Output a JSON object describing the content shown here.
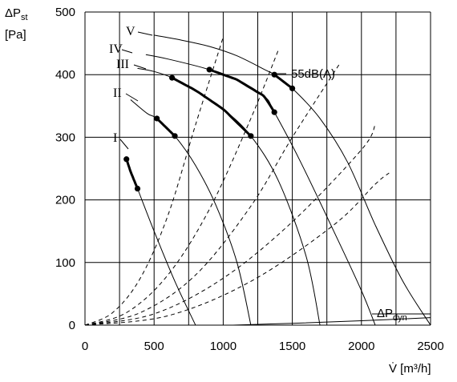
{
  "chart_data": {
    "type": "line",
    "ylabel": "ΔPst",
    "ylabel_main": "ΔP",
    "ylabel_sub": "st",
    "yunit": "[Pa]",
    "xlabel": "V̇ [m³/h]",
    "xlim": [
      0,
      2500
    ],
    "ylim": [
      0,
      500
    ],
    "x_ticks": [
      "0",
      "500",
      "1000",
      "1500",
      "2000",
      "2500"
    ],
    "y_ticks": [
      "0",
      "100",
      "200",
      "300",
      "400",
      "500"
    ],
    "grid": true,
    "fan_curves": [
      {
        "name": "I",
        "points": [
          [
            300,
            265
          ],
          [
            330,
            245
          ],
          [
            380,
            218
          ],
          [
            500,
            150
          ],
          [
            650,
            70
          ],
          [
            800,
            0
          ]
        ],
        "bold_range": [
          300,
          380
        ]
      },
      {
        "name": "II",
        "points": [
          [
            330,
            360
          ],
          [
            450,
            338
          ],
          [
            520,
            330
          ],
          [
            650,
            302
          ],
          [
            800,
            255
          ],
          [
            950,
            190
          ],
          [
            1100,
            100
          ],
          [
            1200,
            0
          ]
        ],
        "bold_range": [
          520,
          650
        ]
      },
      {
        "name": "III",
        "points": [
          [
            380,
            410
          ],
          [
            500,
            405
          ],
          [
            630,
            395
          ],
          [
            800,
            375
          ],
          [
            1000,
            345
          ],
          [
            1200,
            302
          ],
          [
            1400,
            230
          ],
          [
            1600,
            110
          ],
          [
            1700,
            0
          ]
        ],
        "bold_range": [
          630,
          1200
        ]
      },
      {
        "name": "IV",
        "points": [
          [
            440,
            432
          ],
          [
            600,
            425
          ],
          [
            900,
            408
          ],
          [
            1100,
            392
          ],
          [
            1300,
            365
          ],
          [
            1370,
            340
          ],
          [
            1550,
            265
          ],
          [
            1800,
            150
          ],
          [
            2000,
            55
          ],
          [
            2100,
            0
          ]
        ],
        "bold_range": [
          900,
          1370
        ]
      },
      {
        "name": "V",
        "points": [
          [
            500,
            463
          ],
          [
            700,
            455
          ],
          [
            900,
            445
          ],
          [
            1100,
            430
          ],
          [
            1300,
            408
          ],
          [
            1370,
            400
          ],
          [
            1500,
            378
          ],
          [
            1700,
            330
          ],
          [
            1900,
            260
          ],
          [
            2100,
            160
          ],
          [
            2300,
            70
          ],
          [
            2500,
            0
          ]
        ],
        "bold_range": [
          1370,
          1500
        ]
      }
    ],
    "system_curves": [
      {
        "points": [
          [
            0,
            0
          ],
          [
            200,
            20
          ],
          [
            400,
            75
          ],
          [
            600,
            175
          ],
          [
            800,
            320
          ],
          [
            1000,
            460
          ]
        ]
      },
      {
        "points": [
          [
            0,
            0
          ],
          [
            300,
            20
          ],
          [
            600,
            80
          ],
          [
            900,
            185
          ],
          [
            1200,
            330
          ],
          [
            1400,
            440
          ]
        ]
      },
      {
        "points": [
          [
            0,
            0
          ],
          [
            400,
            20
          ],
          [
            800,
            80
          ],
          [
            1200,
            190
          ],
          [
            1500,
            300
          ],
          [
            1850,
            420
          ]
        ]
      },
      {
        "points": [
          [
            0,
            0
          ],
          [
            500,
            18
          ],
          [
            1000,
            75
          ],
          [
            1500,
            165
          ],
          [
            2000,
            280
          ],
          [
            2100,
            320
          ]
        ]
      },
      {
        "points": [
          [
            0,
            0
          ],
          [
            600,
            15
          ],
          [
            1200,
            70
          ],
          [
            1800,
            160
          ],
          [
            2100,
            225
          ],
          [
            2200,
            243
          ]
        ]
      }
    ],
    "dynamic_pressure_line": {
      "points": [
        [
          1070,
          0
        ],
        [
          1500,
          3
        ],
        [
          2000,
          7
        ],
        [
          2500,
          12
        ]
      ]
    },
    "operating_points": [
      [
        300,
        265
      ],
      [
        380,
        218
      ],
      [
        520,
        330
      ],
      [
        650,
        302
      ],
      [
        630,
        395
      ],
      [
        1200,
        302
      ],
      [
        900,
        408
      ],
      [
        1370,
        340
      ],
      [
        1370,
        400
      ],
      [
        1500,
        378
      ]
    ],
    "labels": {
      "I": "I",
      "II": "II",
      "III": "III",
      "IV": "IV",
      "V": "V",
      "noise": "55dB(A)",
      "pdyn_main": "ΔP",
      "pdyn_sub": "dyn"
    }
  }
}
